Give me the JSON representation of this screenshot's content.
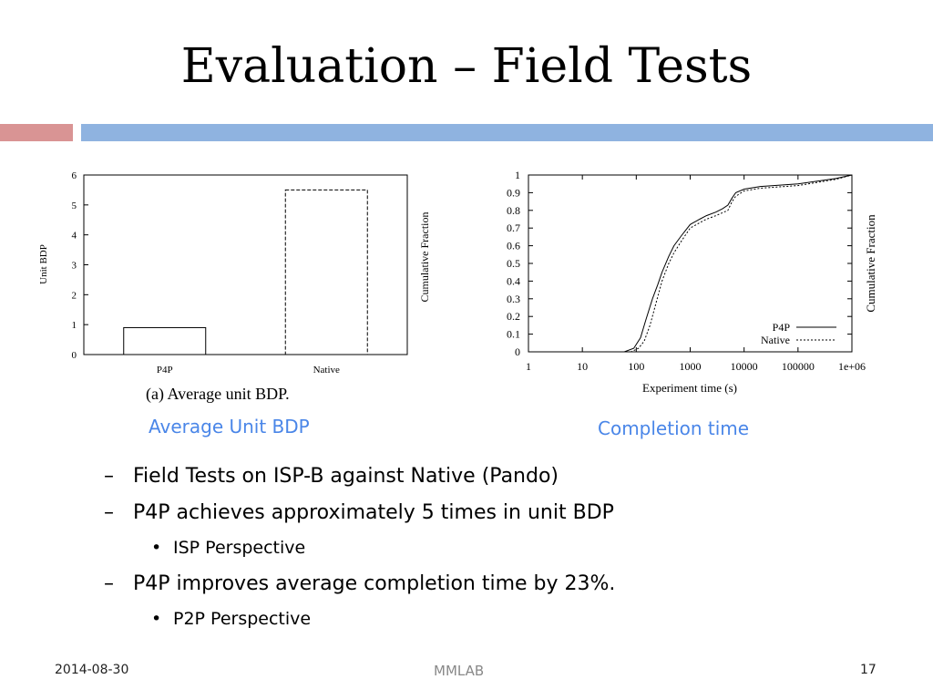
{
  "slide": {
    "title": "Evaluation – Field Tests",
    "accent_left": "#d99494",
    "accent_right": "#8fb3e0"
  },
  "figures": {
    "left_caption": "Average Unit BDP",
    "right_caption": "Completion time"
  },
  "chart_data": [
    {
      "type": "bar",
      "title": "(a) Average unit BDP.",
      "ylabel": "Unit BDP",
      "extra_axis_label": "Cumulative Fraction",
      "categories": [
        "P4P",
        "Native"
      ],
      "values": [
        0.9,
        5.5
      ],
      "ylim": [
        0,
        6
      ],
      "yticks": [
        "0",
        "1",
        "2",
        "3",
        "4",
        "5",
        "6"
      ]
    },
    {
      "type": "line",
      "xlabel": "Experiment time (s)",
      "ylabel": "Cumulative Fraction",
      "xscale": "log",
      "xlim": [
        1,
        1000000
      ],
      "ylim": [
        0,
        1
      ],
      "xticks": [
        "1",
        "10",
        "100",
        "1000",
        "10000",
        "100000",
        "1e+06"
      ],
      "yticks": [
        "0",
        "0.1",
        "0.2",
        "0.3",
        "0.4",
        "0.5",
        "0.6",
        "0.7",
        "0.8",
        "0.9",
        "1"
      ],
      "legend_position": "bottom-right",
      "series": [
        {
          "name": "P4P",
          "style": "solid",
          "points": [
            [
              1,
              0
            ],
            [
              60,
              0
            ],
            [
              90,
              0.02
            ],
            [
              120,
              0.08
            ],
            [
              150,
              0.18
            ],
            [
              200,
              0.3
            ],
            [
              250,
              0.38
            ],
            [
              300,
              0.45
            ],
            [
              400,
              0.54
            ],
            [
              500,
              0.6
            ],
            [
              700,
              0.66
            ],
            [
              1000,
              0.72
            ],
            [
              1500,
              0.75
            ],
            [
              2000,
              0.77
            ],
            [
              3000,
              0.79
            ],
            [
              4000,
              0.81
            ],
            [
              5000,
              0.83
            ],
            [
              6000,
              0.87
            ],
            [
              7000,
              0.9
            ],
            [
              10000,
              0.92
            ],
            [
              20000,
              0.935
            ],
            [
              100000,
              0.95
            ],
            [
              500000,
              0.98
            ],
            [
              1000000,
              1.0
            ]
          ]
        },
        {
          "name": "Native",
          "style": "dotted",
          "points": [
            [
              1,
              0
            ],
            [
              80,
              0
            ],
            [
              110,
              0.02
            ],
            [
              140,
              0.06
            ],
            [
              180,
              0.15
            ],
            [
              230,
              0.27
            ],
            [
              300,
              0.4
            ],
            [
              400,
              0.5
            ],
            [
              500,
              0.56
            ],
            [
              700,
              0.63
            ],
            [
              1000,
              0.7
            ],
            [
              1500,
              0.73
            ],
            [
              2000,
              0.75
            ],
            [
              3000,
              0.77
            ],
            [
              5000,
              0.8
            ],
            [
              6000,
              0.85
            ],
            [
              7000,
              0.88
            ],
            [
              10000,
              0.91
            ],
            [
              20000,
              0.925
            ],
            [
              100000,
              0.94
            ],
            [
              500000,
              0.975
            ],
            [
              1000000,
              1.0
            ]
          ]
        }
      ]
    }
  ],
  "bullets": [
    {
      "level": 1,
      "text": "Field Tests on ISP-B against Native (Pando)"
    },
    {
      "level": 1,
      "text": "P4P achieves approximately 5 times in unit BDP"
    },
    {
      "level": 2,
      "text": "ISP Perspective"
    },
    {
      "level": 1,
      "text": "P4P improves average completion time by 23%."
    },
    {
      "level": 2,
      "text": "P2P Perspective"
    }
  ],
  "footer": {
    "date": "2014-08-30",
    "center": "MMLAB",
    "page": "17"
  },
  "markers": {
    "dash": "–",
    "dot": "•"
  }
}
